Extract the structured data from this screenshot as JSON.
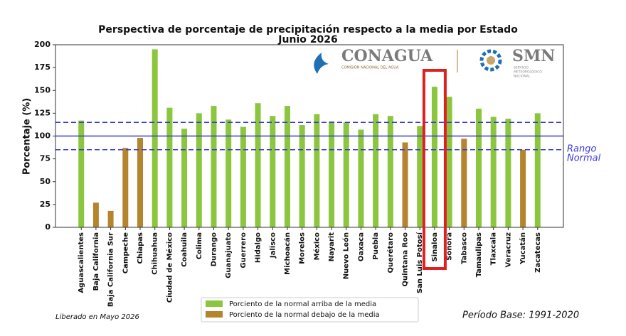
{
  "chart_data": {
    "type": "bar",
    "title": "Perspectiva de porcentaje de precipitación respecto a la media por Estado",
    "subtitle": "Junio 2026",
    "y_label": "Porcentaje (%)",
    "categories": [
      "Aguascalientes",
      "Baja California",
      "Baja California Sur",
      "Campeche",
      "Chiapas",
      "Chihuahua",
      "Ciudad de México",
      "Coahuila",
      "Colima",
      "Durango",
      "Guanajuato",
      "Guerrero",
      "Hidalgo",
      "Jalisco",
      "Michoacán",
      "Morelos",
      "México",
      "Nayarit",
      "Nuevo León",
      "Oaxaca",
      "Puebla",
      "Querétaro",
      "Quintana Roo",
      "San Luis Potosí",
      "Sinaloa",
      "Sonora",
      "Tabasco",
      "Tamaulipas",
      "Tlaxcala",
      "Veracruz",
      "Yucatán",
      "Zacatecas"
    ],
    "series": [
      {
        "name": "Porciento de la normal arriba de la media",
        "color": "#8cc63e",
        "values": [
          117,
          null,
          null,
          null,
          null,
          195,
          131,
          108,
          125,
          133,
          118,
          110,
          136,
          122,
          133,
          112,
          124,
          116,
          115,
          107,
          124,
          122,
          null,
          111,
          154,
          143,
          null,
          130,
          121,
          119,
          null,
          125
        ]
      },
      {
        "name": "Porciento de la normal debajo de la media",
        "color": "#b5852e",
        "values": [
          null,
          27,
          18,
          87,
          98,
          null,
          null,
          null,
          null,
          null,
          null,
          null,
          null,
          null,
          null,
          null,
          null,
          null,
          null,
          null,
          null,
          null,
          93,
          null,
          null,
          null,
          97,
          null,
          null,
          null,
          85,
          null
        ]
      }
    ],
    "ylim": [
      0,
      200
    ],
    "yticks": [
      0,
      25,
      50,
      75,
      100,
      125,
      150,
      175,
      200
    ],
    "reference_lines": [
      {
        "value": 100,
        "style": "solid"
      },
      {
        "value": 85,
        "style": "dashed"
      },
      {
        "value": 115,
        "style": "dashed"
      }
    ],
    "reference_color": "#3b3bd6",
    "normal_range_label": [
      "Rango",
      "Normal"
    ],
    "highlight_index": 24,
    "highlight_color": "#e02020",
    "logos": {
      "conagua": "CONAGUA",
      "conagua_sub": "COMISIÓN NACIONAL DEL AGUA",
      "smn": "SMN",
      "smn_sub": [
        "SERVICIO",
        "METEOROLÓGICO",
        "NACIONAL"
      ]
    },
    "release_note": "Liberado en Mayo 2026",
    "base_period": "Período Base: 1991-2020"
  }
}
